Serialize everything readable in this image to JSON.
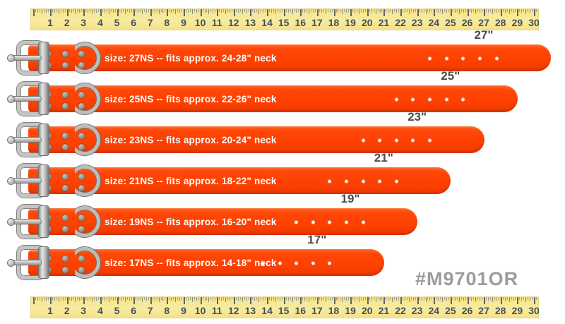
{
  "product_code": "#M9701OR",
  "ruler": {
    "numbers": [
      "1",
      "2",
      "3",
      "4",
      "5",
      "6",
      "7",
      "8",
      "9",
      "10",
      "11",
      "12",
      "13",
      "14",
      "15",
      "16",
      "17",
      "18",
      "19",
      "20",
      "21",
      "22",
      "23",
      "24",
      "25",
      "26",
      "27",
      "28",
      "29",
      "30"
    ]
  },
  "collars": [
    {
      "size_label": "size: 27NS -- fits approx. 24-28\" neck",
      "length_label": "27\"",
      "length_inches": 27,
      "hole_count": 5
    },
    {
      "size_label": "size: 25NS -- fits approx. 22-26\" neck",
      "length_label": "25\"",
      "length_inches": 25,
      "hole_count": 5
    },
    {
      "size_label": "size: 23NS -- fits approx. 20-24\" neck",
      "length_label": "23\"",
      "length_inches": 23,
      "hole_count": 5
    },
    {
      "size_label": "size: 21NS -- fits approx. 18-22\" neck",
      "length_label": "21\"",
      "length_inches": 21,
      "hole_count": 5
    },
    {
      "size_label": "size: 19NS -- fits approx. 16-20\" neck",
      "length_label": "19\"",
      "length_inches": 19,
      "hole_count": 5
    },
    {
      "size_label": "size: 17NS -- fits approx. 14-18\" neck",
      "length_label": "17\"",
      "length_inches": 17,
      "hole_count": 5
    }
  ],
  "colors": {
    "strap_orange": "#ff4103",
    "ruler_yellow": "#f7e795",
    "metal_silver": "#c4c4c4",
    "hole_white": "#ffffff",
    "length_label_gray": "#4c4c4c",
    "product_code_gray": "#9c9c9c"
  }
}
